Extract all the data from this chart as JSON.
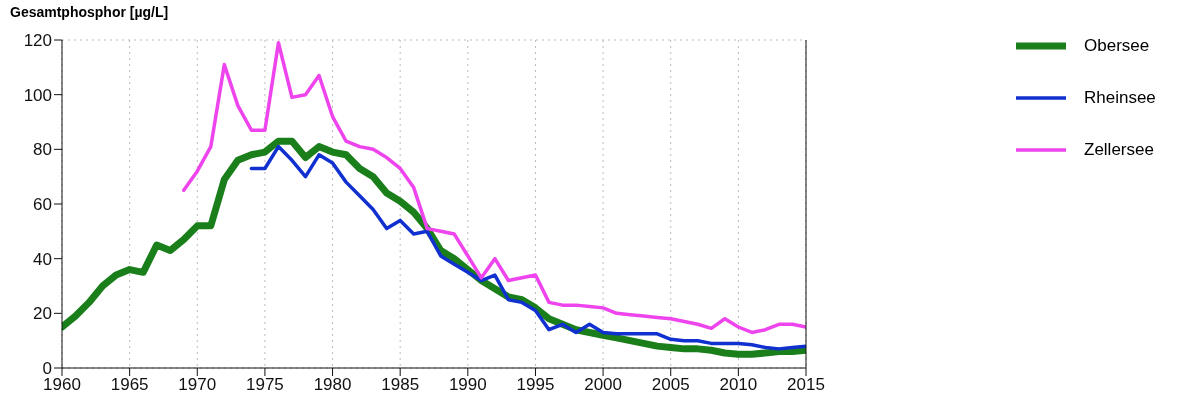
{
  "chart_data": {
    "type": "line",
    "ylabel": "Gesamtphosphor  [µg/L]",
    "x": [
      1960,
      1961,
      1962,
      1963,
      1964,
      1965,
      1966,
      1967,
      1968,
      1969,
      1970,
      1971,
      1972,
      1973,
      1974,
      1975,
      1976,
      1977,
      1978,
      1979,
      1980,
      1981,
      1982,
      1983,
      1984,
      1985,
      1986,
      1987,
      1988,
      1989,
      1990,
      1991,
      1992,
      1993,
      1994,
      1995,
      1996,
      1997,
      1998,
      1999,
      2000,
      2001,
      2002,
      2003,
      2004,
      2005,
      2006,
      2007,
      2008,
      2009,
      2010,
      2011,
      2012,
      2013,
      2014,
      2015
    ],
    "series": [
      {
        "name": "Obersee",
        "color": "#1a7f1a",
        "values": [
          15,
          19,
          24,
          30,
          34,
          36,
          35,
          45,
          43,
          47,
          52,
          52,
          69,
          76,
          78,
          79,
          83,
          83,
          77,
          81,
          79,
          78,
          73,
          70,
          64,
          61,
          57,
          51,
          43,
          40,
          36,
          32,
          29,
          26,
          25,
          22,
          18,
          16,
          14,
          13,
          12,
          11,
          10,
          9,
          8,
          7.5,
          7,
          7,
          6.5,
          5.5,
          5,
          5,
          5.5,
          6,
          6,
          6.5
        ]
      },
      {
        "name": "Rheinsee",
        "color": "#1030d0",
        "values": [
          null,
          null,
          null,
          null,
          null,
          null,
          null,
          null,
          null,
          null,
          null,
          null,
          null,
          null,
          73,
          73,
          81,
          76,
          70,
          78,
          75,
          68,
          63,
          58,
          51,
          54,
          49,
          50,
          41,
          38,
          35,
          32,
          34,
          25,
          24,
          21,
          14,
          16,
          13,
          16,
          13,
          12.5,
          12.5,
          12.5,
          12.5,
          10.5,
          10,
          10,
          9,
          9,
          9,
          8.5,
          7.5,
          7,
          7.5,
          8
        ]
      },
      {
        "name": "Zellersee",
        "color": "#ee44ee",
        "values": [
          null,
          null,
          null,
          null,
          null,
          null,
          null,
          null,
          null,
          65,
          72,
          81,
          111,
          96,
          87,
          87,
          119,
          99,
          100,
          107,
          92,
          83,
          81,
          80,
          77,
          73,
          66,
          51,
          50,
          49,
          41,
          33,
          40,
          32,
          33,
          34,
          24,
          23,
          23,
          22.5,
          22,
          20,
          19.5,
          19,
          18.5,
          18,
          17,
          16,
          14.5,
          18,
          15,
          13,
          14,
          16,
          16,
          15
        ]
      }
    ],
    "xlim": [
      1960,
      2015
    ],
    "xticks": [
      1960,
      1965,
      1970,
      1975,
      1980,
      1985,
      1990,
      1995,
      2000,
      2005,
      2010,
      2015
    ],
    "ylim": [
      0,
      120
    ],
    "yticks": [
      0,
      20,
      40,
      60,
      80,
      100,
      120
    ],
    "grid": true,
    "legend": "top right"
  }
}
